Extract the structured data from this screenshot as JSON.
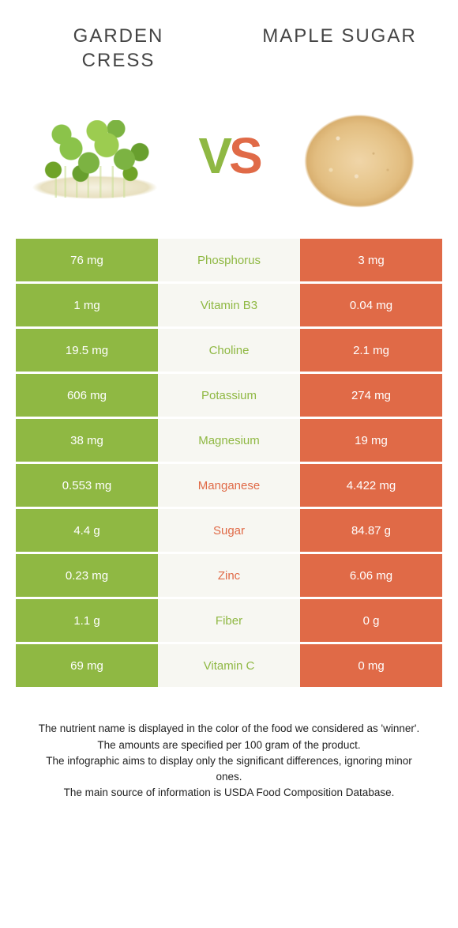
{
  "header": {
    "left_title": "GARDEN CRESS",
    "right_title": "MAPLE SUGAR"
  },
  "vs": {
    "v": "V",
    "s": "S"
  },
  "colors": {
    "left": "#8fb843",
    "right": "#e06a47",
    "mid_bg": "#f7f7f2"
  },
  "rows": [
    {
      "left": "76 mg",
      "label": "Phosphorus",
      "right": "3 mg",
      "winner": "left"
    },
    {
      "left": "1 mg",
      "label": "Vitamin B3",
      "right": "0.04 mg",
      "winner": "left"
    },
    {
      "left": "19.5 mg",
      "label": "Choline",
      "right": "2.1 mg",
      "winner": "left"
    },
    {
      "left": "606 mg",
      "label": "Potassium",
      "right": "274 mg",
      "winner": "left"
    },
    {
      "left": "38 mg",
      "label": "Magnesium",
      "right": "19 mg",
      "winner": "left"
    },
    {
      "left": "0.553 mg",
      "label": "Manganese",
      "right": "4.422 mg",
      "winner": "right"
    },
    {
      "left": "4.4 g",
      "label": "Sugar",
      "right": "84.87 g",
      "winner": "right"
    },
    {
      "left": "0.23 mg",
      "label": "Zinc",
      "right": "6.06 mg",
      "winner": "right"
    },
    {
      "left": "1.1 g",
      "label": "Fiber",
      "right": "0 g",
      "winner": "left"
    },
    {
      "left": "69 mg",
      "label": "Vitamin C",
      "right": "0 mg",
      "winner": "left"
    }
  ],
  "footer": {
    "line1": "The nutrient name is displayed in the color of the food we considered as 'winner'.",
    "line2": "The amounts are specified per 100 gram of the product.",
    "line3": "The infographic aims to display only the significant differences, ignoring minor ones.",
    "line4": "The main source of information is USDA Food Composition Database."
  }
}
